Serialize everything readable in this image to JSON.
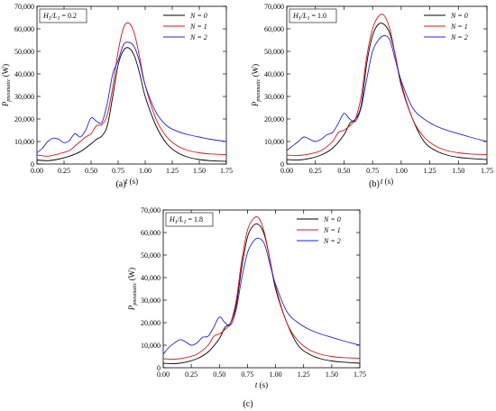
{
  "chart_data": [
    {
      "type": "line",
      "panel_label": "(a)",
      "annotation": "H1/L1 = 0.2",
      "xlabel": "t (s)",
      "ylabel": "P_pneumatic (W)",
      "xlim": [
        0,
        1.75
      ],
      "ylim": [
        0,
        70000
      ],
      "x_ticks": [
        0.0,
        0.25,
        0.5,
        0.75,
        1.0,
        1.25,
        1.5,
        1.75
      ],
      "x_tick_labels": [
        "0.00",
        "0.25",
        "0.50",
        "0.75",
        "1.00",
        "1.25",
        "1.50",
        "1.75"
      ],
      "y_ticks": [
        0,
        10000,
        20000,
        30000,
        40000,
        50000,
        60000,
        70000
      ],
      "y_tick_labels": [
        "0",
        "10,000",
        "20,000",
        "30,000",
        "40,000",
        "50,000",
        "60,000",
        "70,000"
      ],
      "legend_position": "top-right",
      "series": [
        {
          "name": "N = 0",
          "color": "#000000",
          "x": [
            0,
            0.1,
            0.2,
            0.3,
            0.4,
            0.5,
            0.55,
            0.6,
            0.65,
            0.7,
            0.75,
            0.8,
            0.85,
            0.9,
            0.95,
            1.0,
            1.1,
            1.2,
            1.3,
            1.4,
            1.5,
            1.6,
            1.75
          ],
          "y": [
            1800,
            1500,
            2200,
            3500,
            5500,
            9000,
            11000,
            12500,
            17000,
            30000,
            44000,
            50500,
            51500,
            48000,
            40000,
            30000,
            17000,
            9000,
            5000,
            3000,
            2000,
            1500,
            1200
          ]
        },
        {
          "name": "N = 1",
          "color": "#e01010",
          "x": [
            0,
            0.1,
            0.2,
            0.3,
            0.35,
            0.4,
            0.45,
            0.5,
            0.55,
            0.6,
            0.65,
            0.7,
            0.75,
            0.8,
            0.85,
            0.9,
            0.95,
            1.0,
            1.1,
            1.2,
            1.3,
            1.4,
            1.5,
            1.6,
            1.75
          ],
          "y": [
            4000,
            3500,
            4500,
            6000,
            8000,
            10000,
            12000,
            13500,
            17000,
            17500,
            22000,
            34000,
            50000,
            60500,
            62500,
            58000,
            47000,
            35000,
            20000,
            12000,
            8000,
            6000,
            5000,
            4500,
            4200
          ]
        },
        {
          "name": "N = 2",
          "color": "#2020e0",
          "x": [
            0,
            0.05,
            0.1,
            0.15,
            0.2,
            0.25,
            0.3,
            0.35,
            0.4,
            0.45,
            0.5,
            0.55,
            0.6,
            0.65,
            0.7,
            0.75,
            0.8,
            0.85,
            0.9,
            0.95,
            1.0,
            1.1,
            1.2,
            1.3,
            1.4,
            1.5,
            1.6,
            1.75
          ],
          "y": [
            5000,
            7000,
            10000,
            11500,
            11000,
            9500,
            10500,
            13500,
            12000,
            15000,
            20500,
            19000,
            18500,
            27000,
            40000,
            46000,
            53000,
            54000,
            52000,
            45000,
            35000,
            23000,
            17000,
            14500,
            13000,
            12000,
            11000,
            10000
          ]
        }
      ]
    },
    {
      "type": "line",
      "panel_label": "(b)",
      "annotation": "H1/L1 = 1.0",
      "xlabel": "t (s)",
      "ylabel": "P_pneumatic (W)",
      "xlim": [
        0,
        1.75
      ],
      "ylim": [
        0,
        70000
      ],
      "x_ticks": [
        0.0,
        0.25,
        0.5,
        0.75,
        1.0,
        1.25,
        1.5,
        1.75
      ],
      "x_tick_labels": [
        "0.00",
        "0.25",
        "0.50",
        "0.75",
        "1.00",
        "1.25",
        "1.50",
        "1.75"
      ],
      "y_ticks": [
        0,
        10000,
        20000,
        30000,
        40000,
        50000,
        60000,
        70000
      ],
      "y_tick_labels": [
        "0",
        "10,000",
        "20,000",
        "30,000",
        "40,000",
        "50,000",
        "60,000",
        "70,000"
      ],
      "legend_position": "top-right",
      "series": [
        {
          "name": "N = 0",
          "color": "#000000",
          "x": [
            0,
            0.1,
            0.2,
            0.3,
            0.4,
            0.5,
            0.55,
            0.6,
            0.65,
            0.7,
            0.75,
            0.8,
            0.85,
            0.9,
            0.95,
            1.0,
            1.1,
            1.2,
            1.3,
            1.4,
            1.5,
            1.6,
            1.75
          ],
          "y": [
            2000,
            1800,
            2500,
            4000,
            7000,
            13000,
            18000,
            20000,
            26000,
            45000,
            57000,
            62000,
            62000,
            58000,
            48000,
            35000,
            20000,
            10000,
            6000,
            4000,
            3000,
            2500,
            2000
          ]
        },
        {
          "name": "N = 1",
          "color": "#e01010",
          "x": [
            0,
            0.1,
            0.2,
            0.3,
            0.4,
            0.45,
            0.5,
            0.55,
            0.6,
            0.65,
            0.7,
            0.75,
            0.8,
            0.85,
            0.9,
            0.95,
            1.0,
            1.1,
            1.2,
            1.3,
            1.4,
            1.5,
            1.6,
            1.75
          ],
          "y": [
            4000,
            3800,
            4500,
            6000,
            10000,
            14000,
            15000,
            17000,
            20000,
            30000,
            48000,
            60000,
            65500,
            66000,
            60000,
            48000,
            36000,
            20000,
            12000,
            8000,
            6000,
            5000,
            4500,
            4200
          ]
        },
        {
          "name": "N = 2",
          "color": "#2020e0",
          "x": [
            0,
            0.05,
            0.1,
            0.15,
            0.2,
            0.25,
            0.3,
            0.35,
            0.4,
            0.45,
            0.5,
            0.55,
            0.6,
            0.65,
            0.7,
            0.75,
            0.8,
            0.85,
            0.9,
            0.95,
            1.0,
            1.1,
            1.2,
            1.3,
            1.4,
            1.5,
            1.6,
            1.75
          ],
          "y": [
            6000,
            8000,
            10000,
            12000,
            11000,
            10000,
            11000,
            13000,
            14000,
            18000,
            22500,
            20000,
            19000,
            25000,
            38000,
            50000,
            55000,
            57000,
            55000,
            46000,
            37000,
            25000,
            20000,
            17000,
            15000,
            13500,
            12000,
            10000
          ]
        }
      ]
    },
    {
      "type": "line",
      "panel_label": "(c)",
      "annotation": "H1/L1 = 1.8",
      "xlabel": "t (s)",
      "ylabel": "P_pneumatic (W)",
      "xlim": [
        0,
        1.75
      ],
      "ylim": [
        0,
        70000
      ],
      "x_ticks": [
        0.0,
        0.25,
        0.5,
        0.75,
        1.0,
        1.25,
        1.5,
        1.75
      ],
      "x_tick_labels": [
        "0.00",
        "0.25",
        "0.50",
        "0.75",
        "1.00",
        "1.25",
        "1.50",
        "1.75"
      ],
      "y_ticks": [
        0,
        10000,
        20000,
        30000,
        40000,
        50000,
        60000,
        70000
      ],
      "y_tick_labels": [
        "0",
        "10,000",
        "20,000",
        "30,000",
        "40,000",
        "50,000",
        "60,000",
        "70,000"
      ],
      "legend_position": "top-right",
      "series": [
        {
          "name": "N = 0",
          "color": "#000000",
          "x": [
            0,
            0.1,
            0.2,
            0.3,
            0.4,
            0.5,
            0.55,
            0.6,
            0.65,
            0.7,
            0.75,
            0.8,
            0.85,
            0.9,
            0.95,
            1.0,
            1.1,
            1.2,
            1.3,
            1.4,
            1.5,
            1.6,
            1.75
          ],
          "y": [
            2000,
            1800,
            2500,
            4000,
            7000,
            13000,
            18000,
            20000,
            28000,
            45000,
            58000,
            63000,
            63500,
            59000,
            48000,
            35000,
            20000,
            10000,
            6000,
            4000,
            3000,
            2500,
            2000
          ]
        },
        {
          "name": "N = 1",
          "color": "#e01010",
          "x": [
            0,
            0.1,
            0.2,
            0.3,
            0.4,
            0.45,
            0.5,
            0.55,
            0.6,
            0.65,
            0.7,
            0.75,
            0.8,
            0.85,
            0.9,
            0.95,
            1.0,
            1.1,
            1.2,
            1.3,
            1.4,
            1.5,
            1.6,
            1.75
          ],
          "y": [
            4000,
            3800,
            4500,
            6000,
            10000,
            14000,
            15000,
            17000,
            20000,
            30000,
            48000,
            61000,
            66000,
            66500,
            60000,
            48000,
            36000,
            20000,
            12000,
            8000,
            6000,
            5000,
            4500,
            4200
          ]
        },
        {
          "name": "N = 2",
          "color": "#2020e0",
          "x": [
            0,
            0.05,
            0.1,
            0.15,
            0.2,
            0.25,
            0.3,
            0.35,
            0.4,
            0.45,
            0.5,
            0.55,
            0.6,
            0.65,
            0.7,
            0.75,
            0.8,
            0.85,
            0.9,
            0.95,
            1.0,
            1.1,
            1.2,
            1.3,
            1.4,
            1.5,
            1.6,
            1.75
          ],
          "y": [
            6000,
            9000,
            11000,
            12500,
            11500,
            10000,
            11000,
            13500,
            14000,
            18000,
            22500,
            20000,
            19000,
            26000,
            40000,
            51000,
            56000,
            57500,
            55000,
            46000,
            37000,
            25000,
            20000,
            17000,
            15000,
            13500,
            12000,
            10000
          ]
        }
      ]
    }
  ]
}
